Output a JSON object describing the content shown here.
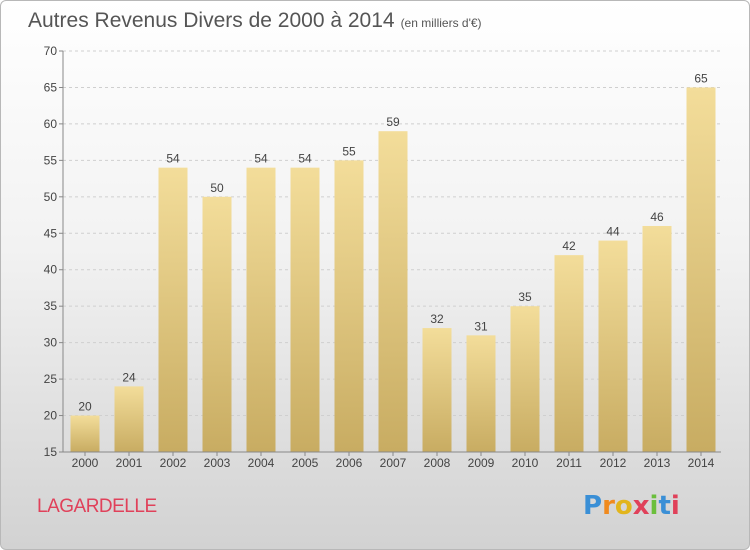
{
  "title": "Autres Revenus Divers de 2000 à 2014",
  "unit": "(en milliers d'€)",
  "commune": "LAGARDELLE",
  "logo": {
    "text": "Proxiti",
    "letters": [
      "P",
      "r",
      "o",
      "x",
      "i",
      "t",
      "i"
    ],
    "colors": [
      "#3a8fd6",
      "#f08a1e",
      "#e2b51c",
      "#e0415a",
      "#6bbf3c",
      "#3a8fd6",
      "#e0415a"
    ]
  },
  "colors": {
    "bar_light": "#f3dd9a",
    "bar_dark": "#c8ac62",
    "title": "#555555",
    "commune": "#e0415a"
  },
  "chart_data": {
    "type": "bar",
    "title": "Autres Revenus Divers de 2000 à 2014",
    "xlabel": "",
    "ylabel": "",
    "categories": [
      "2000",
      "2001",
      "2002",
      "2003",
      "2004",
      "2005",
      "2006",
      "2007",
      "2008",
      "2009",
      "2010",
      "2011",
      "2012",
      "2013",
      "2014"
    ],
    "values": [
      20,
      24,
      54,
      50,
      54,
      54,
      55,
      59,
      32,
      31,
      35,
      42,
      44,
      46,
      65
    ],
    "ylim": [
      15,
      70
    ],
    "yticks": [
      15,
      20,
      25,
      30,
      35,
      40,
      45,
      50,
      55,
      60,
      65,
      70
    ],
    "grid": true,
    "legend": "none"
  }
}
